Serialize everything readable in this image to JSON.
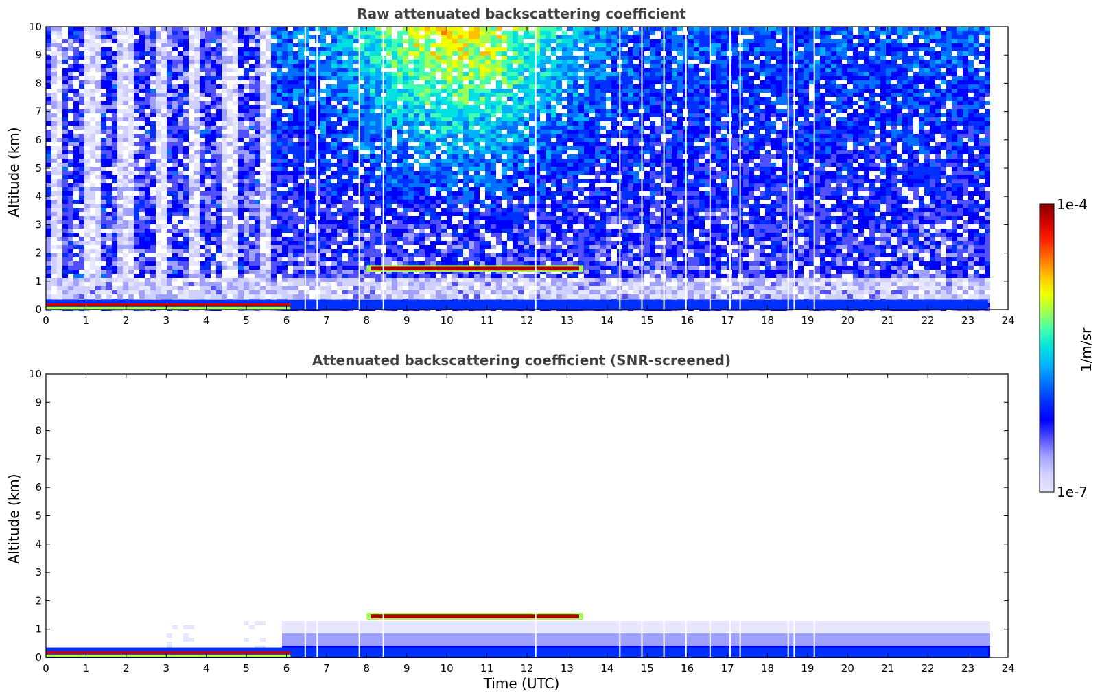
{
  "chart_data": [
    {
      "type": "heatmap",
      "title": "Raw attenuated backscattering coefficient",
      "xlabel": "",
      "ylabel": "Altitude (km)",
      "xlim": [
        0,
        24
      ],
      "ylim": [
        0,
        10
      ],
      "x_ticks": [
        0,
        1,
        2,
        3,
        4,
        5,
        6,
        7,
        8,
        9,
        10,
        11,
        12,
        13,
        14,
        15,
        16,
        17,
        18,
        19,
        20,
        21,
        22,
        23,
        24
      ],
      "y_ticks": [
        0,
        1,
        2,
        3,
        4,
        5,
        6,
        7,
        8,
        9,
        10
      ],
      "data_end_time": 23.5,
      "data_gaps_time": [
        6.45,
        6.75,
        7.8,
        8.4,
        12.2,
        14.3,
        14.85,
        15.4,
        15.95,
        16.55,
        17.05,
        17.3,
        18.5,
        18.65,
        19.15
      ],
      "features": [
        {
          "name": "cloud layer",
          "time_start": 8.0,
          "time_end": 13.4,
          "altitude_km": 1.45,
          "level": "1e-4"
        },
        {
          "name": "surface layer",
          "time_start": 0.0,
          "time_end": 23.5,
          "altitude_km": 0.1,
          "level": "high"
        }
      ]
    },
    {
      "type": "heatmap",
      "title": "Attenuated backscattering coefficient (SNR-screened)",
      "xlabel": "Time (UTC)",
      "ylabel": "Altitude (km)",
      "xlim": [
        0,
        24
      ],
      "ylim": [
        0,
        10
      ],
      "x_ticks": [
        0,
        1,
        2,
        3,
        4,
        5,
        6,
        7,
        8,
        9,
        10,
        11,
        12,
        13,
        14,
        15,
        16,
        17,
        18,
        19,
        20,
        21,
        22,
        23,
        24
      ],
      "y_ticks": [
        0,
        1,
        2,
        3,
        4,
        5,
        6,
        7,
        8,
        9,
        10
      ],
      "data_end_time": 23.5,
      "data_gaps_time": [
        6.45,
        6.75,
        7.8,
        8.4,
        12.2,
        14.3,
        14.85,
        15.4,
        15.95,
        16.55,
        17.05,
        17.3,
        18.5,
        18.65,
        19.15
      ],
      "features": [
        {
          "name": "cloud layer",
          "time_start": 8.0,
          "time_end": 13.4,
          "altitude_km": 1.45,
          "level": "1e-4"
        },
        {
          "name": "boundary layer",
          "time_start": 6.0,
          "time_end": 23.5,
          "altitude_km": 1.3,
          "level": "low"
        }
      ]
    }
  ],
  "colorbar": {
    "label": "1/m/sr",
    "max_label": "1e-4",
    "min_label": "1e-7",
    "colors": [
      "#e6e6ff",
      "#d0d0ff",
      "#a0a0ff",
      "#5050ff",
      "#0000ff",
      "#0030ff",
      "#0070ff",
      "#00b0ff",
      "#00e0e0",
      "#40ffb0",
      "#a0ff50",
      "#f0ff00",
      "#ffc000",
      "#ff7000",
      "#ff2000",
      "#d00000",
      "#800000"
    ]
  }
}
